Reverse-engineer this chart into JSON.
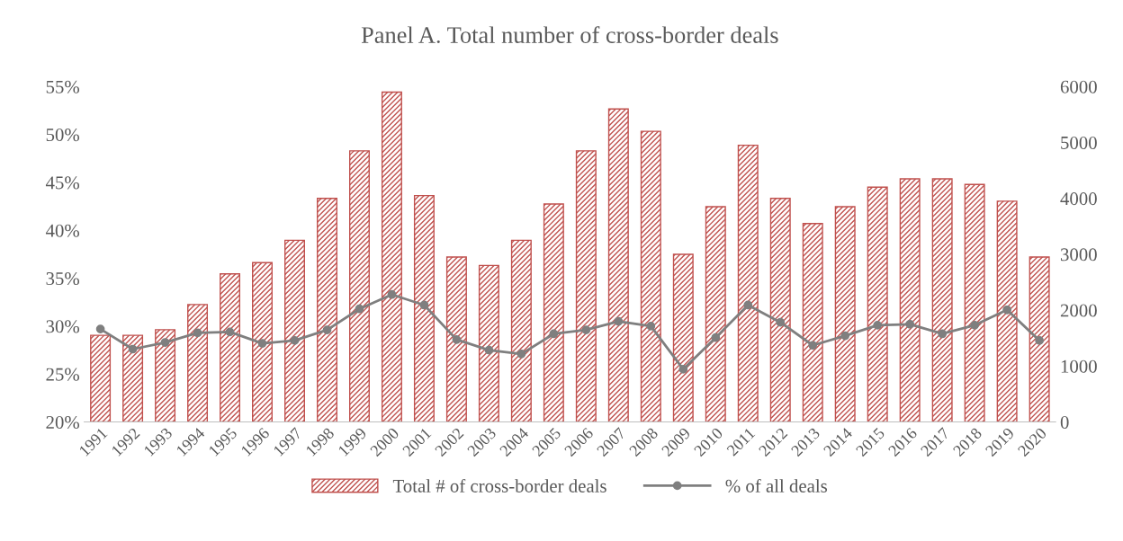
{
  "chart_data": {
    "type": "bar",
    "title": "Panel A. Total number of cross-border deals",
    "categories": [
      "1991",
      "1992",
      "1993",
      "1994",
      "1995",
      "1996",
      "1997",
      "1998",
      "1999",
      "2000",
      "2001",
      "2002",
      "2003",
      "2004",
      "2005",
      "2006",
      "2007",
      "2008",
      "2009",
      "2010",
      "2011",
      "2012",
      "2013",
      "2014",
      "2015",
      "2016",
      "2017",
      "2018",
      "2019",
      "2020"
    ],
    "series": [
      {
        "name": "Total # of cross-border deals",
        "axis": "y2",
        "color": "#c0504d",
        "values": [
          1550,
          1550,
          1650,
          2100,
          2650,
          2850,
          3250,
          4000,
          4850,
          5900,
          4050,
          2950,
          2800,
          3250,
          3900,
          4850,
          5600,
          5200,
          3000,
          3850,
          4950,
          4000,
          3550,
          3850,
          4200,
          4350,
          4350,
          4250,
          3950,
          2950
        ]
      },
      {
        "name": "% of all deals",
        "type": "line",
        "color": "#7f7f7f",
        "marker": "circle",
        "values": [
          29.7,
          27.6,
          28.3,
          29.3,
          29.4,
          28.2,
          28.5,
          29.6,
          31.8,
          33.3,
          32.2,
          28.6,
          27.5,
          27.1,
          29.2,
          29.6,
          30.5,
          30.0,
          25.5,
          28.8,
          32.2,
          30.4,
          28.0,
          29.0,
          30.1,
          30.2,
          29.2,
          30.1,
          31.7,
          28.5
        ]
      }
    ],
    "ylim": [
      20,
      55
    ],
    "yticks": [
      {
        "value": 20,
        "label": "20%"
      },
      {
        "value": 25,
        "label": "25%"
      },
      {
        "value": 30,
        "label": "30%"
      },
      {
        "value": 35,
        "label": "35%"
      },
      {
        "value": 40,
        "label": "40%"
      },
      {
        "value": 45,
        "label": "45%"
      },
      {
        "value": 50,
        "label": "50%"
      },
      {
        "value": 55,
        "label": "55%"
      }
    ],
    "y2lim": [
      0,
      6000
    ],
    "y2ticks": [
      0,
      1000,
      2000,
      3000,
      4000,
      5000,
      6000
    ],
    "grid": false,
    "legend": "bottom"
  }
}
